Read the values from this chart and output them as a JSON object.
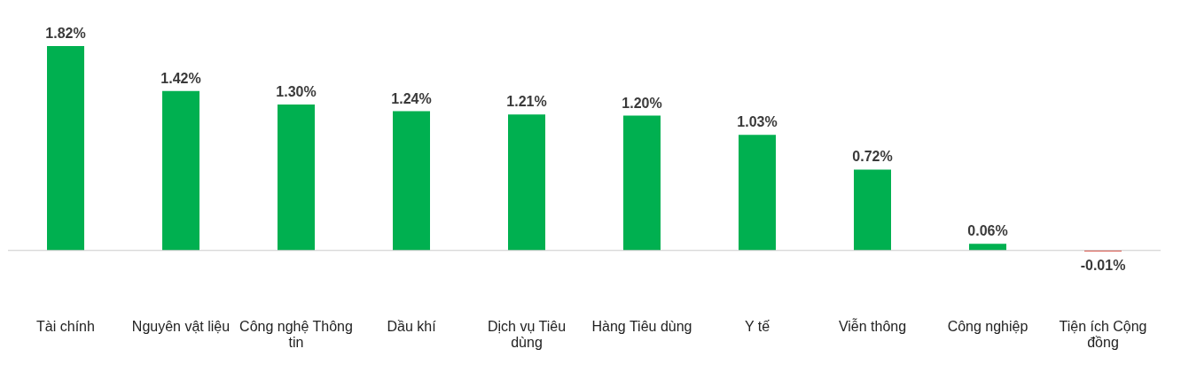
{
  "chart_data": {
    "type": "bar",
    "categories": [
      "Tài chính",
      "Nguyên vật liệu",
      "Công nghệ Thông tin",
      "Dầu khí",
      "Dịch vụ Tiêu dùng",
      "Hàng Tiêu dùng",
      "Y tế",
      "Viễn thông",
      "Công nghiệp",
      "Tiện ích Cộng đồng"
    ],
    "values": [
      1.82,
      1.42,
      1.3,
      1.24,
      1.21,
      1.2,
      1.03,
      0.72,
      0.06,
      -0.01
    ],
    "colors": [
      "#00b050",
      "#00b050",
      "#00b050",
      "#00b050",
      "#00b050",
      "#00b050",
      "#00b050",
      "#00b050",
      "#00b050",
      "#e03c31"
    ],
    "value_labels": [
      "1.82%",
      "1.42%",
      "1.30%",
      "1.24%",
      "1.21%",
      "1.20%",
      "1.03%",
      "0.72%",
      "0.06%",
      "-0.01%"
    ],
    "grid": false
  }
}
